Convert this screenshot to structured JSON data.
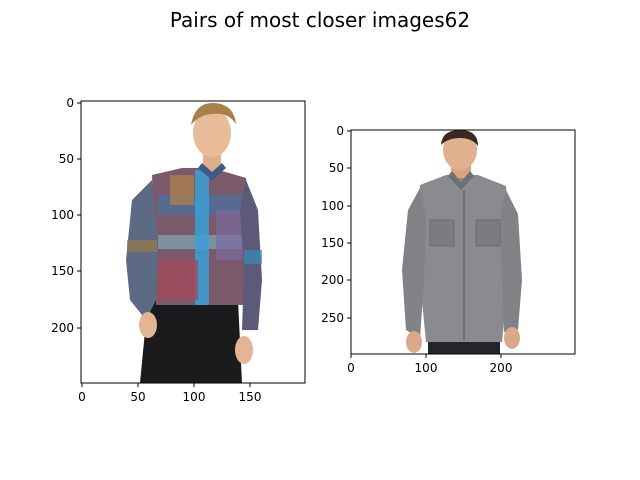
{
  "title": "Pairs of most closer images62",
  "panels": [
    {
      "image_subject": "man in plaid flannel button-up shirt and black jeans",
      "y_ticks": [
        "0",
        "50",
        "100",
        "150",
        "200"
      ],
      "x_ticks": [
        "0",
        "50",
        "100",
        "150"
      ],
      "colors": {
        "frame": "#000000",
        "background": "#ffffff"
      }
    },
    {
      "image_subject": "man in gray chambray button-up shirt with chest pockets",
      "y_ticks": [
        "0",
        "50",
        "100",
        "150",
        "200",
        "250"
      ],
      "x_ticks": [
        "0",
        "100",
        "200"
      ],
      "colors": {
        "frame": "#000000",
        "background": "#ffffff"
      }
    }
  ]
}
